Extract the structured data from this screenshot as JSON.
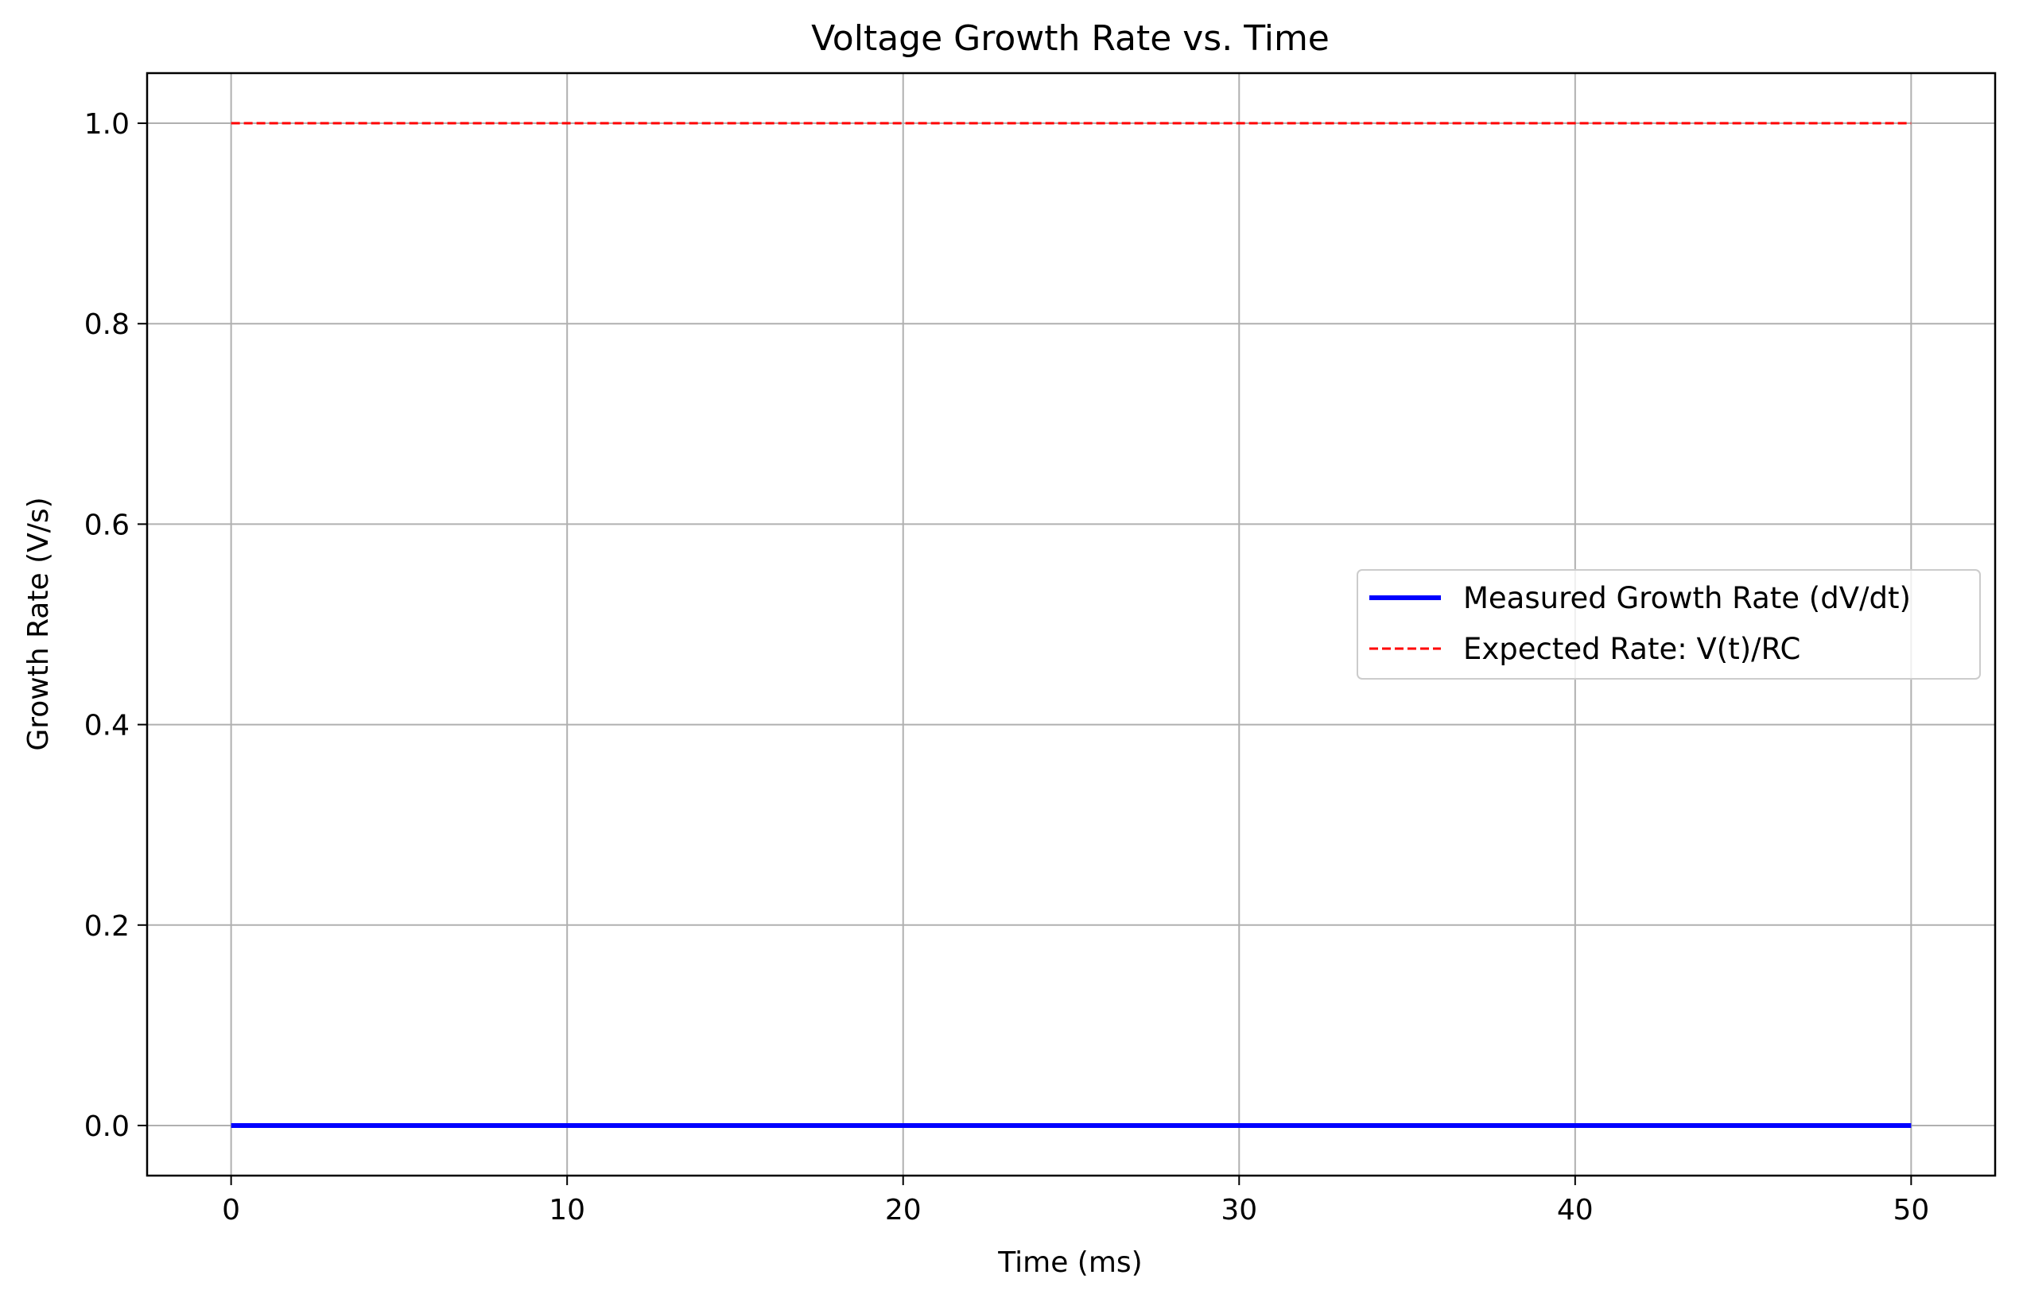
{
  "chart_data": {
    "type": "line",
    "title": "Voltage Growth Rate vs. Time",
    "xlabel": "Time (ms)",
    "ylabel": "Growth Rate (V/s)",
    "xlim": [
      -2.5,
      52.5
    ],
    "ylim": [
      -0.05,
      1.05
    ],
    "x_ticks": [
      0,
      10,
      20,
      30,
      40,
      50
    ],
    "x_tick_labels": [
      "0",
      "10",
      "20",
      "30",
      "40",
      "50"
    ],
    "y_ticks": [
      0.0,
      0.2,
      0.4,
      0.6,
      0.8,
      1.0
    ],
    "y_tick_labels": [
      "0.0",
      "0.2",
      "0.4",
      "0.6",
      "0.8",
      "1.0"
    ],
    "grid": true,
    "legend_position": "center-right",
    "series": [
      {
        "name": "Measured Growth Rate (dV/dt)",
        "color": "#0000ff",
        "style": "solid",
        "x": [
          0,
          50
        ],
        "y": [
          0.0,
          0.0
        ]
      },
      {
        "name": "Expected Rate: V(t)/RC",
        "color": "#ff0000",
        "style": "dashed",
        "x": [
          0,
          50
        ],
        "y": [
          1.0,
          1.0
        ]
      }
    ]
  }
}
